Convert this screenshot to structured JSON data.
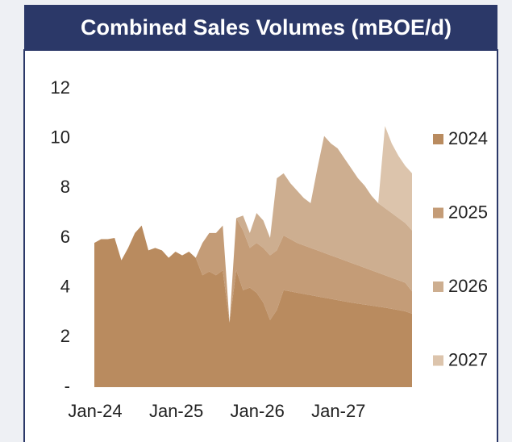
{
  "chart_data": {
    "type": "area",
    "stacked": true,
    "title": "Combined Sales Volumes (mBOE/d)",
    "categories": [
      "Jan-24",
      null,
      null,
      null,
      null,
      null,
      null,
      null,
      null,
      null,
      null,
      null,
      "Jan-25",
      null,
      null,
      null,
      null,
      null,
      null,
      null,
      null,
      null,
      null,
      null,
      "Jan-26",
      null,
      null,
      null,
      null,
      null,
      null,
      null,
      null,
      null,
      null,
      null,
      "Jan-27",
      null,
      null,
      null,
      null,
      null,
      null,
      null,
      null,
      null,
      null,
      null
    ],
    "ylim": [
      0,
      12
    ],
    "yticks": [
      {
        "value": 0,
        "label": "-"
      },
      2,
      4,
      6,
      8,
      10,
      12
    ],
    "legend": "right",
    "series": [
      {
        "name": "2024",
        "color": "#b98b5f",
        "values": [
          5.8,
          5.95,
          5.95,
          6.0,
          5.1,
          5.6,
          6.2,
          6.5,
          5.5,
          5.6,
          5.5,
          5.2,
          5.45,
          5.3,
          5.45,
          5.2,
          4.5,
          4.65,
          4.5,
          4.7,
          2.6,
          4.7,
          3.9,
          4.0,
          3.8,
          3.4,
          2.7,
          3.1,
          3.9,
          3.85,
          3.8,
          3.75,
          3.7,
          3.65,
          3.6,
          3.55,
          3.5,
          3.45,
          3.4,
          3.36,
          3.32,
          3.28,
          3.24,
          3.2,
          3.15,
          3.1,
          3.05,
          2.95
        ]
      },
      {
        "name": "2025",
        "color": "#c49c77",
        "values": [
          0,
          0,
          0,
          0,
          0,
          0,
          0,
          0,
          0,
          0,
          0,
          0,
          0,
          0,
          0,
          0,
          1.3,
          1.55,
          1.7,
          1.8,
          0,
          2.1,
          2.4,
          1.6,
          2.0,
          2.2,
          2.6,
          2.4,
          2.2,
          2.1,
          2.0,
          1.95,
          1.9,
          1.85,
          1.8,
          1.75,
          1.7,
          1.65,
          1.6,
          1.54,
          1.48,
          1.42,
          1.36,
          1.3,
          1.25,
          1.2,
          1.15,
          0.9
        ]
      },
      {
        "name": "2026",
        "color": "#cdae90",
        "values": [
          0,
          0,
          0,
          0,
          0,
          0,
          0,
          0,
          0,
          0,
          0,
          0,
          0,
          0,
          0,
          0,
          0,
          0,
          0,
          0,
          0,
          0,
          0.6,
          0.6,
          1.2,
          1.1,
          0.7,
          2.9,
          2.5,
          2.25,
          2.1,
          1.9,
          1.8,
          3.3,
          4.7,
          4.5,
          4.4,
          4.1,
          3.8,
          3.5,
          3.3,
          3.0,
          2.8,
          2.7,
          2.6,
          2.5,
          2.4,
          2.45
        ]
      },
      {
        "name": "2027",
        "color": "#dcc4ac",
        "values": [
          0,
          0,
          0,
          0,
          0,
          0,
          0,
          0,
          0,
          0,
          0,
          0,
          0,
          0,
          0,
          0,
          0,
          0,
          0,
          0,
          0,
          0,
          0,
          0,
          0,
          0,
          0,
          0,
          0,
          0,
          0,
          0,
          0,
          0,
          0,
          0,
          0,
          0,
          0,
          0,
          0,
          0,
          0,
          3.3,
          2.8,
          2.5,
          2.3,
          2.3
        ]
      }
    ]
  }
}
